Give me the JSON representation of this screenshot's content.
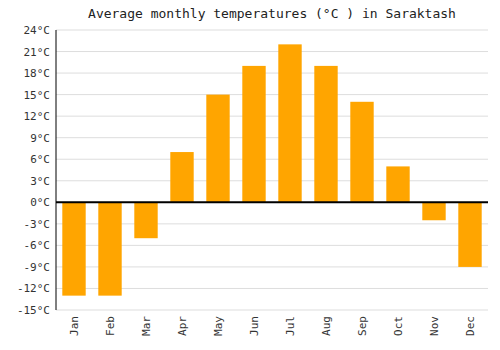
{
  "chart_data": {
    "type": "bar",
    "title": "Average monthly temperatures (°C ) in Saraktash",
    "categories": [
      "Jan",
      "Feb",
      "Mar",
      "Apr",
      "May",
      "Jun",
      "Jul",
      "Aug",
      "Sep",
      "Oct",
      "Nov",
      "Dec"
    ],
    "values": [
      -13,
      -13,
      -5,
      7,
      15,
      19,
      22,
      19,
      14,
      5,
      -2.5,
      -9
    ],
    "color": "#FFA500",
    "ylim": [
      -15,
      24
    ],
    "yticks": [
      {
        "value": -15,
        "label": "-15°C"
      },
      {
        "value": -12,
        "label": "-12°C"
      },
      {
        "value": -9,
        "label": "-9°C"
      },
      {
        "value": -6,
        "label": "-6°C"
      },
      {
        "value": -3,
        "label": "-3°C"
      },
      {
        "value": 0,
        "label": "0°C"
      },
      {
        "value": 3,
        "label": "3°C"
      },
      {
        "value": 6,
        "label": "6°C"
      },
      {
        "value": 9,
        "label": "9°C"
      },
      {
        "value": 12,
        "label": "12°C"
      },
      {
        "value": 15,
        "label": "15°C"
      },
      {
        "value": 18,
        "label": "18°C"
      },
      {
        "value": 21,
        "label": "21°C"
      },
      {
        "value": 24,
        "label": "24°C"
      }
    ],
    "grid": true
  }
}
